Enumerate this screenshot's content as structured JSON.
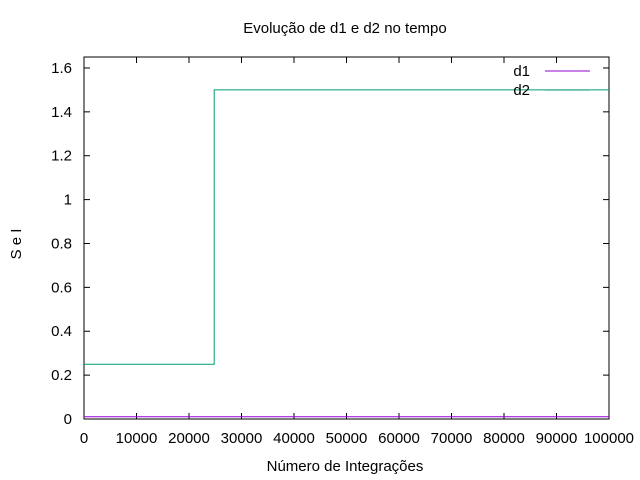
{
  "chart_data": {
    "type": "line",
    "title": "Evolução de d1 e d2 no tempo",
    "xlabel": "Número de Integrações",
    "ylabel": "S e I",
    "xlim": [
      0,
      100000
    ],
    "ylim": [
      0,
      1.65
    ],
    "x_ticks": [
      0,
      10000,
      20000,
      30000,
      40000,
      50000,
      60000,
      70000,
      80000,
      90000,
      100000
    ],
    "x_tick_labels": [
      "0",
      "10000",
      "20000",
      "30000",
      "40000",
      "50000",
      "60000",
      "70000",
      "80000",
      "90000",
      "100000"
    ],
    "y_ticks": [
      0,
      0.2,
      0.4,
      0.6,
      0.8,
      1,
      1.2,
      1.4,
      1.6
    ],
    "y_tick_labels": [
      "0",
      "0.2",
      "0.4",
      "0.6",
      "0.8",
      "1",
      "1.2",
      "1.4",
      "1.6"
    ],
    "grid": false,
    "legend_position": "top-right",
    "series": [
      {
        "name": "d1",
        "color": "#9400d3",
        "points": [
          [
            0,
            0.01
          ],
          [
            100000,
            0.01
          ]
        ]
      },
      {
        "name": "d2",
        "color": "#009e73",
        "points": [
          [
            0,
            0.25
          ],
          [
            24800,
            0.25
          ],
          [
            24800,
            1.5
          ],
          [
            100000,
            1.5
          ]
        ]
      }
    ]
  }
}
